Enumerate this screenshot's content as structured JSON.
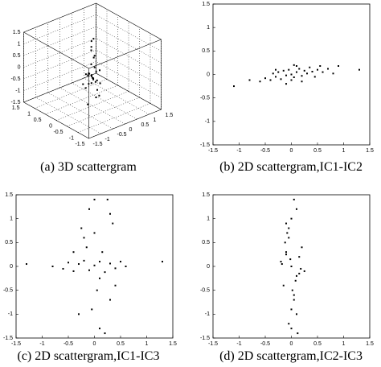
{
  "chart_data": [
    {
      "type": "scatter3d",
      "title": "(a) 3D scattergram",
      "x": [
        0,
        0.1,
        -0.1,
        0.2,
        -0.2,
        0.05,
        -0.05,
        0.15,
        -0.15,
        0.3,
        -0.3,
        0,
        0.1,
        -0.1,
        0.05,
        0,
        0.1,
        -0.05,
        0.2,
        -0.2,
        0,
        0.05,
        -0.1,
        0.1,
        0,
        0.15,
        -0.15,
        0.05,
        0,
        -0.05
      ],
      "y": [
        0,
        -0.1,
        0.1,
        0.05,
        -0.05,
        0.2,
        -0.2,
        0.1,
        -0.1,
        0,
        0.05,
        0.3,
        -0.3,
        0,
        0.1,
        -0.05,
        0.05,
        0,
        -0.1,
        0.1,
        0.15,
        -0.15,
        0,
        0.05,
        -0.05,
        0.1,
        -0.1,
        0,
        0.2,
        -0.2
      ],
      "z": [
        -0.3,
        -0.2,
        -0.4,
        -0.25,
        -0.35,
        -0.15,
        -0.45,
        -0.3,
        -0.2,
        -0.3,
        -0.4,
        -0.1,
        -0.5,
        0.2,
        0.5,
        0.9,
        1.2,
        1.4,
        -0.8,
        -1,
        -1.2,
        -1.4,
        0.7,
        -0.6,
        0.3,
        -0.35,
        -0.25,
        1,
        -0.9,
        0
      ],
      "xlim": [
        -1.5,
        1.5
      ],
      "ylim": [
        -1.5,
        1.5
      ],
      "zlim": [
        -1.5,
        1.5
      ],
      "xticks": [
        -1.5,
        -1,
        -0.5,
        0,
        0.5,
        1,
        1.5
      ],
      "yticks": [
        -1.5,
        -1,
        -0.5,
        0,
        0.5,
        1,
        1.5
      ],
      "zticks": [
        -1.5,
        -1,
        -0.5,
        0,
        0.5,
        1,
        1.5
      ],
      "grid": true,
      "color": "#000000"
    },
    {
      "type": "scatter",
      "title": "(b) 2D scattergram,IC1-IC2",
      "x": [
        -0.6,
        -0.5,
        -0.4,
        -0.35,
        -0.3,
        -0.25,
        -0.2,
        -0.15,
        -0.1,
        -0.05,
        0,
        0.05,
        0.1,
        0.15,
        0.2,
        0.25,
        0.3,
        0.35,
        0.4,
        0.5,
        0.6,
        0.7,
        0.9,
        1.3,
        -1.1,
        -0.8,
        0.05,
        -0.1,
        0.2,
        0.45,
        0.55,
        -0.3,
        0.1,
        0,
        0.8
      ],
      "y": [
        -0.15,
        -0.08,
        -0.12,
        0.02,
        -0.05,
        0.05,
        -0.1,
        0.08,
        -0.02,
        0.1,
        0,
        -0.06,
        0.05,
        0.12,
        -0.03,
        0.08,
        0.02,
        0.15,
        0.06,
        0.1,
        0.05,
        0.12,
        0.18,
        0.1,
        -0.25,
        -0.12,
        0.2,
        -0.2,
        -0.15,
        -0.05,
        0.18,
        0.1,
        0.18,
        -0.12,
        0.02
      ],
      "xlim": [
        -1.5,
        1.5
      ],
      "ylim": [
        -1.5,
        1.5
      ],
      "xticks": [
        -1.5,
        -1,
        -0.5,
        0,
        0.5,
        1,
        1.5
      ],
      "yticks": [
        -1.5,
        -1,
        -0.5,
        0,
        0.5,
        1,
        1.5
      ],
      "color": "#000000"
    },
    {
      "type": "scatter",
      "title": "(c) 2D scattergram,IC1-IC3",
      "x": [
        -0.8,
        -0.6,
        -0.5,
        -0.4,
        -0.3,
        -0.2,
        -0.1,
        0,
        0.1,
        0.2,
        0.3,
        0.4,
        0.5,
        0.6,
        -1.3,
        1.3,
        -0.2,
        0.3,
        -0.1,
        0.1,
        0.25,
        -0.3,
        0.35,
        0.05,
        -0.15,
        0,
        0.2,
        -0.25,
        0.4,
        -0.05,
        0.15,
        0.3,
        -0.4,
        0.1,
        0
      ],
      "y": [
        0,
        -0.05,
        0.08,
        -0.1,
        0.05,
        0.12,
        -0.08,
        0.02,
        0.1,
        -0.12,
        0.06,
        -0.04,
        0.1,
        0,
        0.05,
        0.1,
        0.6,
        -0.7,
        1.2,
        -1.3,
        1.4,
        -1,
        0.9,
        -0.5,
        0.4,
        1.4,
        -1.4,
        0.8,
        -0.4,
        -0.9,
        0.3,
        1.1,
        0.3,
        -0.25,
        0.7
      ],
      "xlim": [
        -1.5,
        1.5
      ],
      "ylim": [
        -1.5,
        1.5
      ],
      "xticks": [
        -1.5,
        -1,
        -0.5,
        0,
        0.5,
        1,
        1.5
      ],
      "yticks": [
        -1.5,
        -1,
        -0.5,
        0,
        0.5,
        1,
        1.5
      ],
      "color": "#000000"
    },
    {
      "type": "scatter",
      "title": "(d) 2D scattergram,IC2-IC3",
      "x": [
        -0.2,
        -0.1,
        0,
        0.1,
        0.2,
        -0.15,
        -0.05,
        0.05,
        0.15,
        0.25,
        -0.1,
        0,
        0.1,
        -0.05,
        0.05,
        0.12,
        -0.12,
        0.02,
        -0.02,
        0.08,
        -0.08,
        0.18,
        -0.18,
        0,
        0.1,
        -0.1,
        0.05,
        -0.05,
        0.15,
        0
      ],
      "y": [
        0.1,
        0.3,
        0,
        -0.2,
        0.4,
        -0.4,
        0.6,
        -0.6,
        0.2,
        -0.1,
        0.9,
        -0.9,
        1.2,
        -1.2,
        1.4,
        -1.4,
        0.5,
        -0.5,
        0.15,
        -0.3,
        0.7,
        -0.05,
        0.05,
        1,
        -1,
        0.25,
        -0.7,
        0.8,
        -0.15,
        -1.3
      ],
      "xlim": [
        -1.5,
        1.5
      ],
      "ylim": [
        -1.5,
        1.5
      ],
      "xticks": [
        -1.5,
        -1,
        -0.5,
        0,
        0.5,
        1,
        1.5
      ],
      "yticks": [
        -1.5,
        -1,
        -0.5,
        0,
        0.5,
        1,
        1.5
      ],
      "color": "#000000"
    }
  ]
}
